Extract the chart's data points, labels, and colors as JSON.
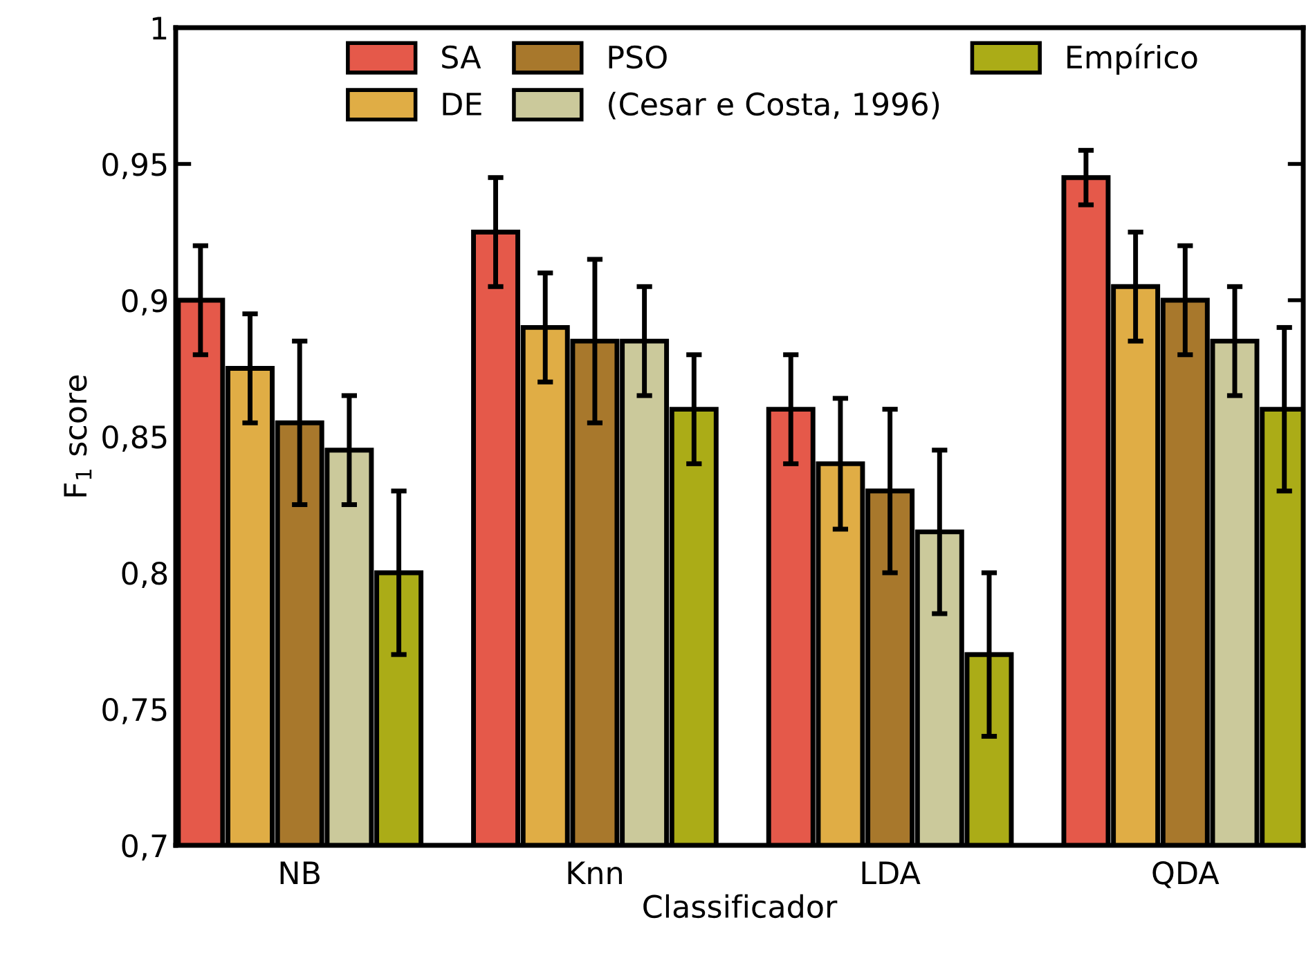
{
  "chart_data": {
    "type": "bar",
    "xlabel": "Classificador",
    "ylabel": "F$_{1}$ score",
    "categories": [
      "NB",
      "Knn",
      "LDA",
      "QDA"
    ],
    "series": [
      {
        "name": "SA",
        "color": "#e5594a",
        "values": [
          0.9,
          0.925,
          0.86,
          0.945
        ],
        "errors": [
          0.02,
          0.02,
          0.02,
          0.01
        ]
      },
      {
        "name": "DE",
        "color": "#e0ad45",
        "values": [
          0.875,
          0.89,
          0.84,
          0.905
        ],
        "errors": [
          0.02,
          0.02,
          0.024,
          0.02
        ]
      },
      {
        "name": "PSO",
        "color": "#a8782c",
        "values": [
          0.855,
          0.885,
          0.83,
          0.9
        ],
        "errors": [
          0.03,
          0.03,
          0.03,
          0.02
        ]
      },
      {
        "name": "(Cesar e Costa, 1996)",
        "color": "#cbc99b",
        "values": [
          0.845,
          0.885,
          0.815,
          0.885
        ],
        "errors": [
          0.02,
          0.02,
          0.03,
          0.02
        ]
      },
      {
        "name": "Empírico",
        "color": "#abac17",
        "values": [
          0.8,
          0.86,
          0.77,
          0.86
        ],
        "errors": [
          0.03,
          0.02,
          0.03,
          0.03
        ]
      }
    ],
    "ylim": [
      0.7,
      1.0
    ],
    "yticks": [
      {
        "value": 0.7,
        "label": "0,7"
      },
      {
        "value": 0.75,
        "label": "0,75"
      },
      {
        "value": 0.8,
        "label": "0,8"
      },
      {
        "value": 0.85,
        "label": "0,85"
      },
      {
        "value": 0.9,
        "label": "0,9"
      },
      {
        "value": 0.95,
        "label": "0,95"
      },
      {
        "value": 1.0,
        "label": "1"
      }
    ],
    "legend": "top",
    "grid": false
  }
}
